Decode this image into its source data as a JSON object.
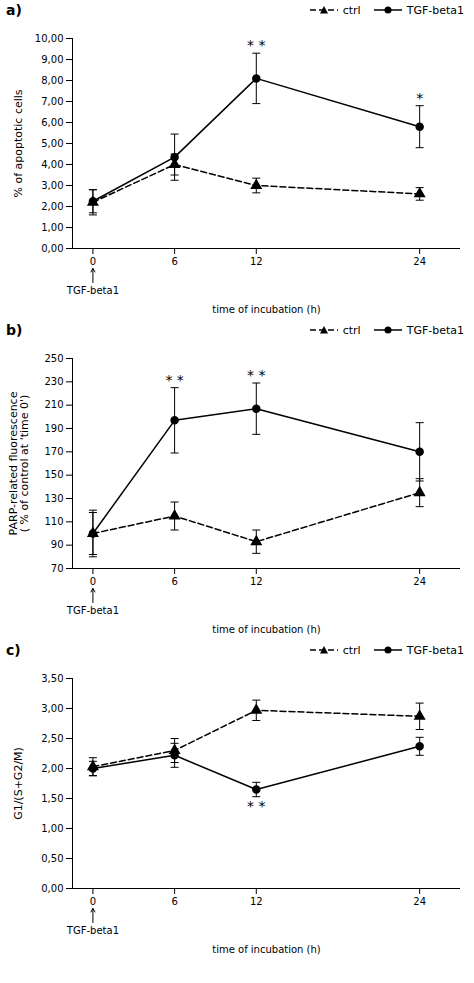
{
  "chart_data": [
    {
      "type": "line",
      "title": "a)",
      "x": [
        0,
        6,
        12,
        24
      ],
      "xlabel": "time of incubation (h)",
      "ylabel": "% of apoptotic cells",
      "xlim": [
        -1.5,
        27
      ],
      "xticks": [
        0,
        6,
        12,
        24
      ],
      "ylim": [
        0.0,
        10.0
      ],
      "yticks": [
        {
          "value": 0.0,
          "label": "0,00"
        },
        {
          "value": 1.0,
          "label": "1,00"
        },
        {
          "value": 2.0,
          "label": "2,00"
        },
        {
          "value": 3.0,
          "label": "3,00"
        },
        {
          "value": 4.0,
          "label": "4,00"
        },
        {
          "value": 5.0,
          "label": "5,00"
        },
        {
          "value": 6.0,
          "label": "6,00"
        },
        {
          "value": 7.0,
          "label": "7,00"
        },
        {
          "value": 8.0,
          "label": "8,00"
        },
        {
          "value": 9.0,
          "label": "9,00"
        },
        {
          "value": 10.0,
          "label": "10,00"
        }
      ],
      "grid": false,
      "legend": "upper right",
      "series": [
        {
          "name": "ctrl",
          "color": "#000000",
          "line_style": "dashed",
          "marker": "triangle",
          "values": [
            2.2,
            4.0,
            3.0,
            2.6
          ],
          "yerr": [
            0.6,
            0.5,
            0.35,
            0.3
          ]
        },
        {
          "name": "TGF-beta1",
          "color": "#000000",
          "line_style": "solid",
          "marker": "circle",
          "values": [
            2.25,
            4.35,
            8.1,
            5.8
          ],
          "yerr": [
            0.55,
            1.1,
            1.2,
            1.0
          ]
        }
      ],
      "annotations": [
        {
          "text": "TGF-beta1",
          "x": 0,
          "arrow": "up"
        },
        {
          "text": "* *",
          "x": 12,
          "series": "TGF-beta1"
        },
        {
          "text": "*",
          "x": 24,
          "series": "TGF-beta1"
        }
      ]
    },
    {
      "type": "line",
      "title": "b)",
      "x": [
        0,
        6,
        12,
        24
      ],
      "xlabel": "time of incubation (h)",
      "ylabel": "PARP-related fluorescence\n( % of control at 'time 0')",
      "xlim": [
        -1.5,
        27
      ],
      "xticks": [
        0,
        6,
        12,
        24
      ],
      "ylim": [
        70,
        250
      ],
      "yticks": [
        70,
        90,
        110,
        130,
        150,
        170,
        190,
        210,
        230,
        250
      ],
      "grid": false,
      "legend": "upper right",
      "series": [
        {
          "name": "ctrl",
          "color": "#000000",
          "line_style": "dashed",
          "marker": "triangle",
          "values": [
            100,
            115,
            93,
            135
          ],
          "yerr": [
            18,
            12,
            10,
            12
          ]
        },
        {
          "name": "TGF-beta1",
          "color": "#000000",
          "line_style": "solid",
          "marker": "circle",
          "values": [
            100,
            197,
            207,
            170
          ],
          "yerr": [
            20,
            28,
            22,
            25
          ]
        }
      ],
      "annotations": [
        {
          "text": "TGF-beta1",
          "x": 0,
          "arrow": "up"
        },
        {
          "text": "* *",
          "x": 6,
          "series": "TGF-beta1"
        },
        {
          "text": "* *",
          "x": 12,
          "series": "TGF-beta1"
        }
      ]
    },
    {
      "type": "line",
      "title": "c)",
      "x": [
        0,
        6,
        12,
        24
      ],
      "xlabel": "time of incubation (h)",
      "ylabel": "G1/(S+G2/M)",
      "xlim": [
        -1.5,
        27
      ],
      "xticks": [
        0,
        6,
        12,
        24
      ],
      "ylim": [
        0.0,
        3.5
      ],
      "yticks": [
        {
          "value": 0.0,
          "label": "0,00"
        },
        {
          "value": 0.5,
          "label": "0,50"
        },
        {
          "value": 1.0,
          "label": "1,00"
        },
        {
          "value": 1.5,
          "label": "1,50"
        },
        {
          "value": 2.0,
          "label": "2,00"
        },
        {
          "value": 2.5,
          "label": "2,50"
        },
        {
          "value": 3.0,
          "label": "3,00"
        },
        {
          "value": 3.5,
          "label": "3,50"
        }
      ],
      "grid": false,
      "legend": "upper right",
      "series": [
        {
          "name": "ctrl",
          "color": "#000000",
          "line_style": "dashed",
          "marker": "triangle",
          "values": [
            2.03,
            2.3,
            2.97,
            2.87
          ],
          "yerr": [
            0.15,
            0.2,
            0.17,
            0.22
          ]
        },
        {
          "name": "TGF-beta1",
          "color": "#000000",
          "line_style": "solid",
          "marker": "circle",
          "values": [
            2.0,
            2.22,
            1.65,
            2.37
          ],
          "yerr": [
            0.12,
            0.2,
            0.12,
            0.15
          ]
        }
      ],
      "annotations": [
        {
          "text": "TGF-beta1",
          "x": 0,
          "arrow": "up"
        },
        {
          "text": "* *",
          "x": 12,
          "series": "TGF-beta1"
        }
      ]
    }
  ]
}
